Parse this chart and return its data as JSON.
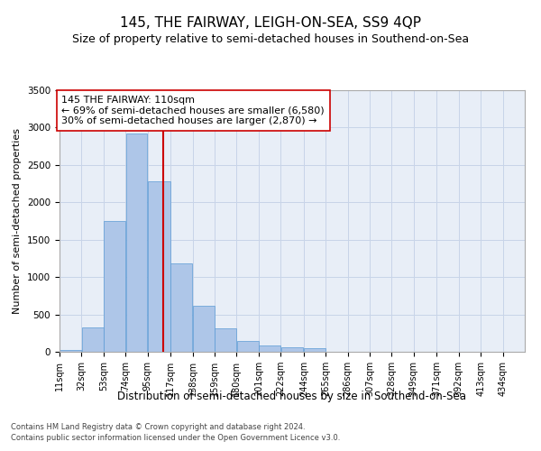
{
  "title": "145, THE FAIRWAY, LEIGH-ON-SEA, SS9 4QP",
  "subtitle": "Size of property relative to semi-detached houses in Southend-on-Sea",
  "xlabel": "Distribution of semi-detached houses by size in Southend-on-Sea",
  "ylabel": "Number of semi-detached properties",
  "footer1": "Contains HM Land Registry data © Crown copyright and database right 2024.",
  "footer2": "Contains public sector information licensed under the Open Government Licence v3.0.",
  "annotation_line1": "145 THE FAIRWAY: 110sqm",
  "annotation_line2": "← 69% of semi-detached houses are smaller (6,580)",
  "annotation_line3": "30% of semi-detached houses are larger (2,870) →",
  "property_size": 110,
  "bar_left_edges": [
    11,
    32,
    53,
    74,
    95,
    117,
    138,
    159,
    180,
    201,
    222,
    244,
    265,
    286,
    307,
    328,
    349,
    371,
    392,
    413
  ],
  "bar_widths": [
    21,
    21,
    21,
    21,
    22,
    21,
    21,
    21,
    21,
    21,
    22,
    21,
    21,
    21,
    21,
    21,
    22,
    21,
    21,
    21
  ],
  "bar_heights": [
    30,
    320,
    1750,
    2920,
    2280,
    1180,
    610,
    310,
    150,
    80,
    60,
    50,
    0,
    0,
    0,
    0,
    0,
    0,
    0,
    0
  ],
  "tick_labels": [
    "11sqm",
    "32sqm",
    "53sqm",
    "74sqm",
    "95sqm",
    "117sqm",
    "138sqm",
    "159sqm",
    "180sqm",
    "201sqm",
    "222sqm",
    "244sqm",
    "265sqm",
    "286sqm",
    "307sqm",
    "328sqm",
    "349sqm",
    "371sqm",
    "392sqm",
    "413sqm",
    "434sqm"
  ],
  "bar_color": "#aec6e8",
  "bar_edge_color": "#5b9bd5",
  "vline_x": 110,
  "vline_color": "#cc0000",
  "ylim": [
    0,
    3500
  ],
  "yticks": [
    0,
    500,
    1000,
    1500,
    2000,
    2500,
    3000,
    3500
  ],
  "background_color": "#ffffff",
  "grid_color": "#c8d4e8",
  "title_fontsize": 11,
  "subtitle_fontsize": 9,
  "annotation_fontsize": 8,
  "axis_fontsize": 8.5,
  "ylabel_fontsize": 8,
  "tick_fontsize": 7,
  "footer_fontsize": 6
}
